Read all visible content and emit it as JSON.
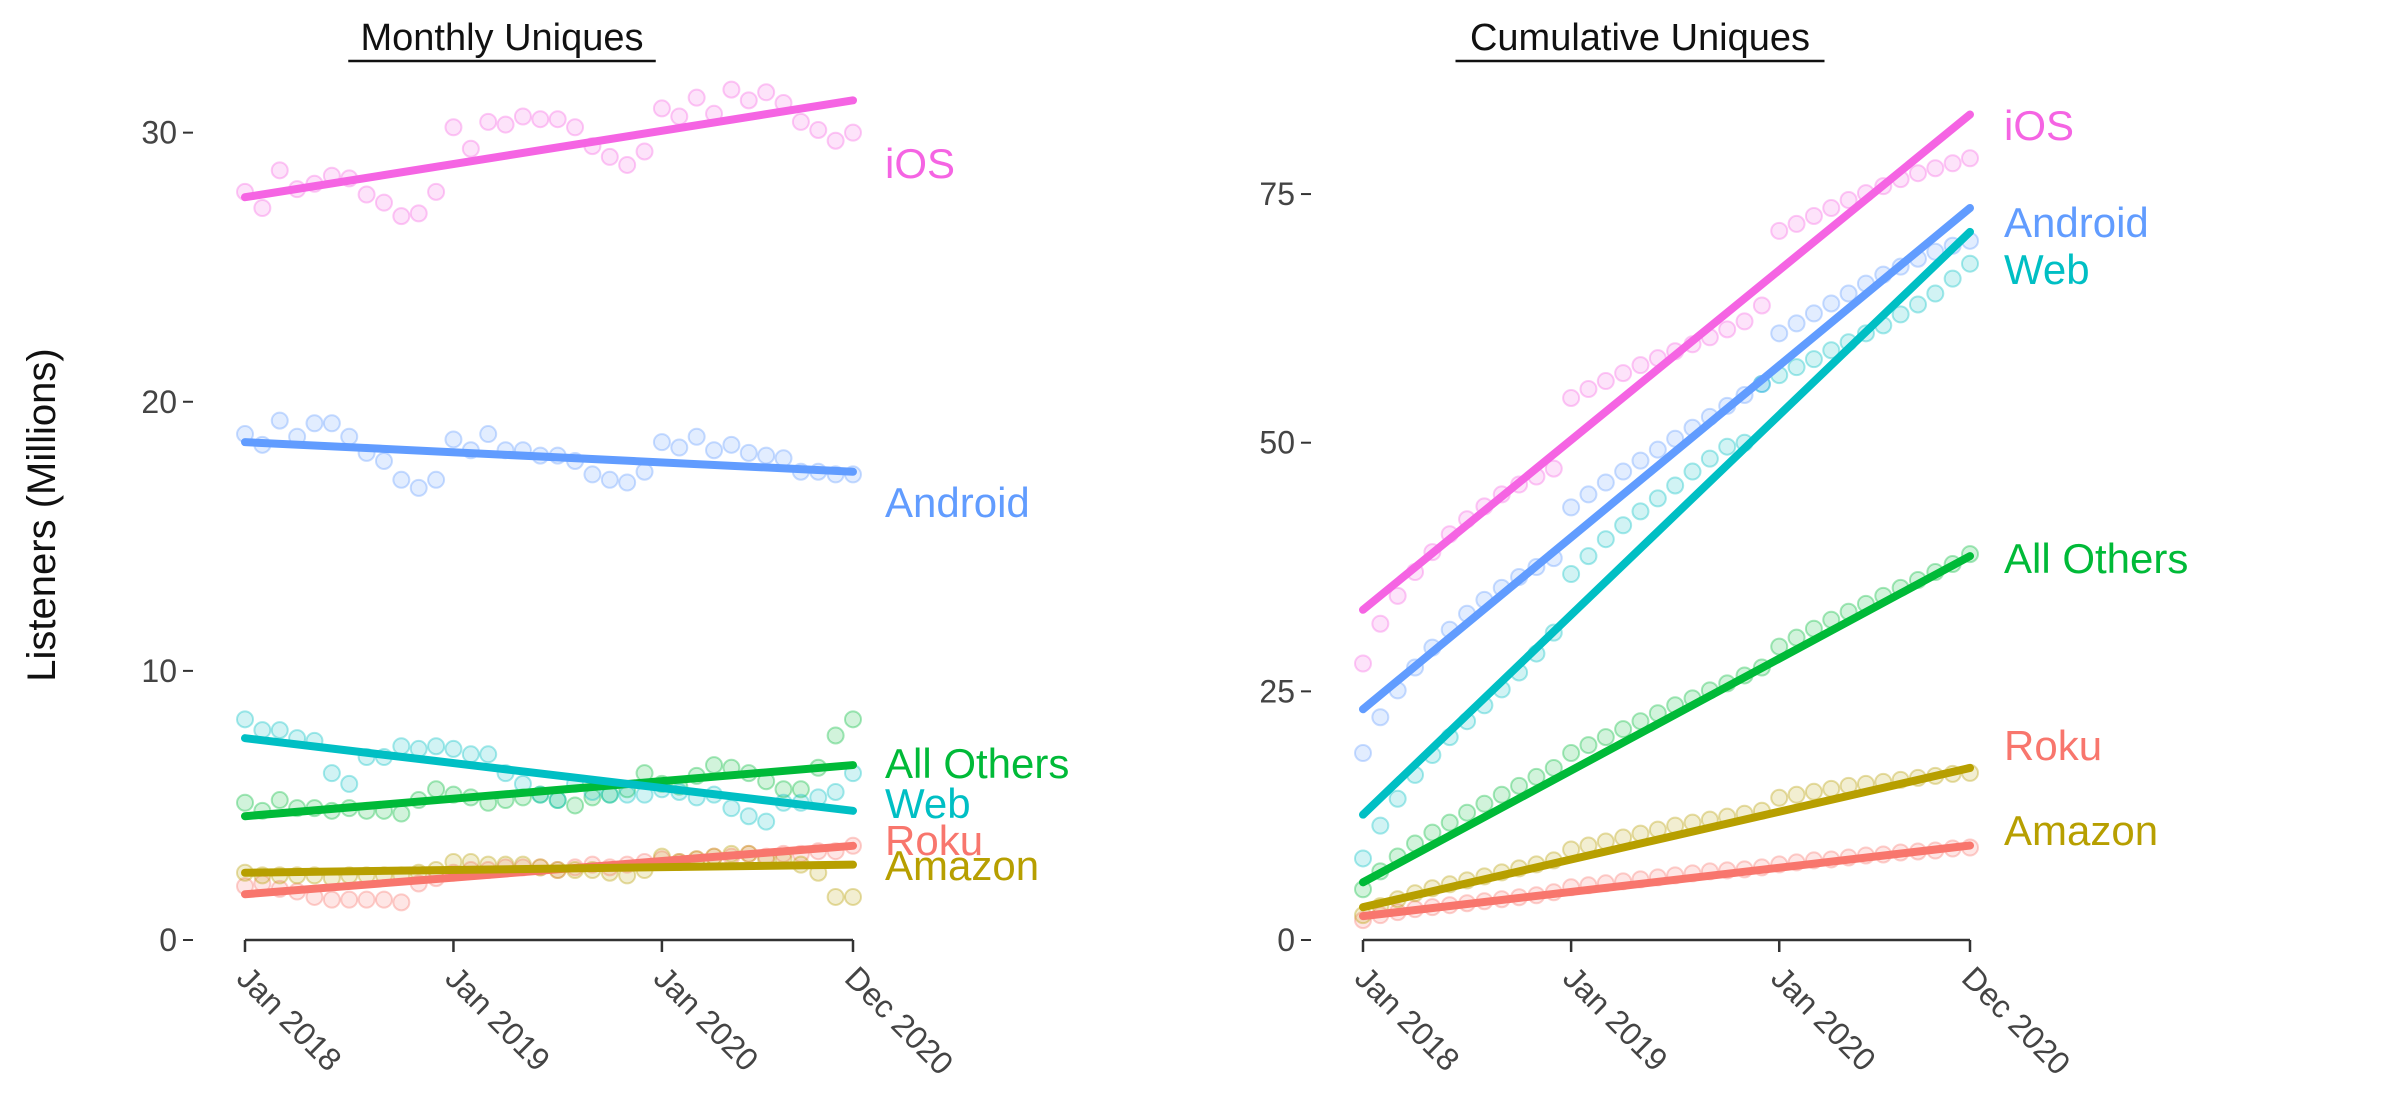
{
  "y_axis_title": "Listeners (Millions)",
  "chart_data": [
    {
      "type": "scatter",
      "title": "Monthly Uniques",
      "xlabel": "",
      "ylabel": "Listeners (Millions)",
      "x_ticks": [
        "Jan 2018",
        "Jan 2019",
        "Jan 2020",
        "Dec 2020"
      ],
      "x_tick_months": [
        0,
        12,
        24,
        35
      ],
      "x_range": [
        0,
        35
      ],
      "y_ticks": [
        0,
        10,
        20,
        30
      ],
      "ylim": [
        0,
        34
      ],
      "grid": false,
      "legend": "direct labels at right end of lines",
      "series": [
        {
          "name": "iOS",
          "color": "#F564E3",
          "trend": [
            27.6,
            31.2
          ],
          "values": [
            27.8,
            27.2,
            28.6,
            27.9,
            28.1,
            28.4,
            28.3,
            27.7,
            27.4,
            26.9,
            27.0,
            27.8,
            30.2,
            29.4,
            30.4,
            30.3,
            30.6,
            30.5,
            30.5,
            30.2,
            29.5,
            29.1,
            28.8,
            29.3,
            30.9,
            30.6,
            31.3,
            30.7,
            31.6,
            31.2,
            31.5,
            31.1,
            30.4,
            30.1,
            29.7,
            30.0
          ]
        },
        {
          "name": "Android",
          "color": "#619CFF",
          "trend": [
            18.5,
            17.4
          ],
          "values": [
            18.8,
            18.4,
            19.3,
            18.7,
            19.2,
            19.2,
            18.7,
            18.1,
            17.8,
            17.1,
            16.8,
            17.1,
            18.6,
            18.2,
            18.8,
            18.2,
            18.2,
            18.0,
            18.0,
            17.8,
            17.3,
            17.1,
            17.0,
            17.4,
            18.5,
            18.3,
            18.7,
            18.2,
            18.4,
            18.1,
            18.0,
            17.9,
            17.4,
            17.4,
            17.3,
            17.3
          ]
        },
        {
          "name": "All Others",
          "color": "#00BA38",
          "trend": [
            4.6,
            6.5
          ],
          "values": [
            5.1,
            4.8,
            5.2,
            4.9,
            4.9,
            4.8,
            4.9,
            4.8,
            4.8,
            4.7,
            5.2,
            5.6,
            5.4,
            5.3,
            5.1,
            5.2,
            5.3,
            5.4,
            5.2,
            5.0,
            5.3,
            5.4,
            5.6,
            6.2,
            5.8,
            5.7,
            6.1,
            6.5,
            6.4,
            6.2,
            5.9,
            5.6,
            5.6,
            6.4,
            7.6,
            8.2
          ]
        },
        {
          "name": "Web",
          "color": "#00BFC4",
          "trend": [
            7.5,
            4.8
          ],
          "values": [
            8.2,
            7.8,
            7.8,
            7.5,
            7.4,
            6.2,
            5.8,
            6.8,
            6.8,
            7.2,
            7.1,
            7.2,
            7.1,
            6.9,
            6.9,
            6.2,
            5.8,
            5.4,
            5.2,
            5.8,
            5.5,
            5.4,
            5.4,
            5.4,
            5.6,
            5.5,
            5.3,
            5.4,
            4.9,
            4.6,
            4.4,
            5.1,
            5.1,
            5.3,
            5.5,
            6.2
          ]
        },
        {
          "name": "Roku",
          "color": "#F8766D",
          "trend": [
            1.7,
            3.5
          ],
          "values": [
            2.0,
            2.1,
            1.9,
            1.8,
            1.6,
            1.5,
            1.5,
            1.5,
            1.5,
            1.4,
            2.1,
            2.3,
            2.5,
            2.6,
            2.6,
            2.7,
            2.7,
            2.7,
            2.6,
            2.7,
            2.8,
            2.7,
            2.8,
            2.9,
            3.0,
            2.9,
            3.0,
            3.1,
            3.1,
            3.2,
            3.1,
            3.2,
            3.2,
            3.3,
            3.3,
            3.5
          ]
        },
        {
          "name": "Amazon",
          "color": "#B79F00",
          "trend": [
            2.5,
            2.8
          ],
          "values": [
            2.5,
            2.4,
            2.4,
            2.4,
            2.4,
            2.3,
            2.4,
            2.4,
            2.4,
            2.4,
            2.5,
            2.6,
            2.9,
            2.9,
            2.8,
            2.8,
            2.8,
            2.7,
            2.6,
            2.6,
            2.6,
            2.5,
            2.4,
            2.6,
            3.1,
            2.9,
            3.0,
            3.1,
            3.2,
            3.2,
            3.0,
            3.0,
            2.8,
            2.5,
            1.6,
            1.6
          ]
        }
      ]
    },
    {
      "type": "scatter",
      "title": "Cumulative Uniques",
      "xlabel": "",
      "ylabel": "Listeners (Millions)",
      "x_ticks": [
        "Jan 2018",
        "Jan 2019",
        "Jan 2020",
        "Dec 2020"
      ],
      "x_tick_months": [
        0,
        12,
        24,
        35
      ],
      "x_range": [
        0,
        35
      ],
      "y_ticks": [
        0,
        25,
        50,
        75
      ],
      "ylim": [
        0,
        92
      ],
      "grid": false,
      "legend": "direct labels at right end of lines",
      "series": [
        {
          "name": "iOS",
          "color": "#F564E3",
          "trend": [
            33.2,
            83.0
          ],
          "values": [
            27.8,
            31.8,
            34.6,
            37.0,
            39.0,
            40.8,
            42.3,
            43.6,
            44.8,
            45.8,
            46.6,
            47.4,
            54.5,
            55.4,
            56.2,
            57.0,
            57.8,
            58.5,
            59.2,
            59.9,
            60.6,
            61.4,
            62.2,
            63.8,
            71.3,
            72.0,
            72.8,
            73.6,
            74.4,
            75.1,
            75.8,
            76.5,
            77.1,
            77.6,
            78.1,
            78.6
          ]
        },
        {
          "name": "Android",
          "color": "#619CFF",
          "trend": [
            23.2,
            73.6
          ],
          "values": [
            18.8,
            22.4,
            25.1,
            27.4,
            29.4,
            31.2,
            32.8,
            34.2,
            35.4,
            36.5,
            37.5,
            38.4,
            43.5,
            44.8,
            46.0,
            47.1,
            48.2,
            49.3,
            50.4,
            51.5,
            52.6,
            53.7,
            54.8,
            55.9,
            61.0,
            62.0,
            63.0,
            64.0,
            65.0,
            66.0,
            66.9,
            67.7,
            68.5,
            69.2,
            69.8,
            70.3
          ]
        },
        {
          "name": "Web",
          "color": "#00BFC4",
          "trend": [
            12.6,
            71.2
          ],
          "values": [
            8.2,
            11.5,
            14.2,
            16.6,
            18.6,
            20.4,
            22.0,
            23.6,
            25.2,
            26.9,
            28.8,
            30.9,
            36.8,
            38.6,
            40.3,
            41.7,
            43.1,
            44.4,
            45.7,
            47.1,
            48.4,
            49.6,
            50.0,
            55.9,
            56.8,
            57.6,
            58.4,
            59.3,
            60.1,
            61.0,
            61.8,
            62.9,
            63.9,
            65.0,
            66.5,
            68.0
          ]
        },
        {
          "name": "All Others",
          "color": "#00BA38",
          "trend": [
            5.8,
            38.6
          ],
          "values": [
            5.1,
            6.9,
            8.4,
            9.7,
            10.8,
            11.8,
            12.8,
            13.7,
            14.6,
            15.5,
            16.4,
            17.3,
            18.8,
            19.6,
            20.4,
            21.2,
            22.0,
            22.8,
            23.6,
            24.3,
            25.1,
            25.8,
            26.6,
            27.4,
            29.5,
            30.4,
            31.3,
            32.2,
            33.0,
            33.8,
            34.6,
            35.4,
            36.2,
            37.0,
            37.8,
            38.8
          ]
        },
        {
          "name": "Roku",
          "color": "#F8766D",
          "trend": [
            2.4,
            9.5
          ],
          "values": [
            2.0,
            2.5,
            2.8,
            3.1,
            3.3,
            3.5,
            3.7,
            3.9,
            4.1,
            4.3,
            4.5,
            4.8,
            5.3,
            5.5,
            5.7,
            5.9,
            6.1,
            6.3,
            6.5,
            6.7,
            6.9,
            7.0,
            7.1,
            7.3,
            7.6,
            7.8,
            8.0,
            8.1,
            8.3,
            8.5,
            8.6,
            8.8,
            8.9,
            9.0,
            9.2,
            9.3
          ]
        },
        {
          "name": "Amazon",
          "color": "#B79F00",
          "trend": [
            3.3,
            17.3
          ],
          "values": [
            2.5,
            3.4,
            4.1,
            4.7,
            5.2,
            5.6,
            6.0,
            6.4,
            6.8,
            7.2,
            7.6,
            8.0,
            9.1,
            9.5,
            9.9,
            10.3,
            10.7,
            11.1,
            11.5,
            11.8,
            12.1,
            12.4,
            12.7,
            13.0,
            14.3,
            14.6,
            14.9,
            15.2,
            15.5,
            15.7,
            15.9,
            16.1,
            16.3,
            16.5,
            16.7,
            16.8
          ]
        }
      ]
    }
  ]
}
